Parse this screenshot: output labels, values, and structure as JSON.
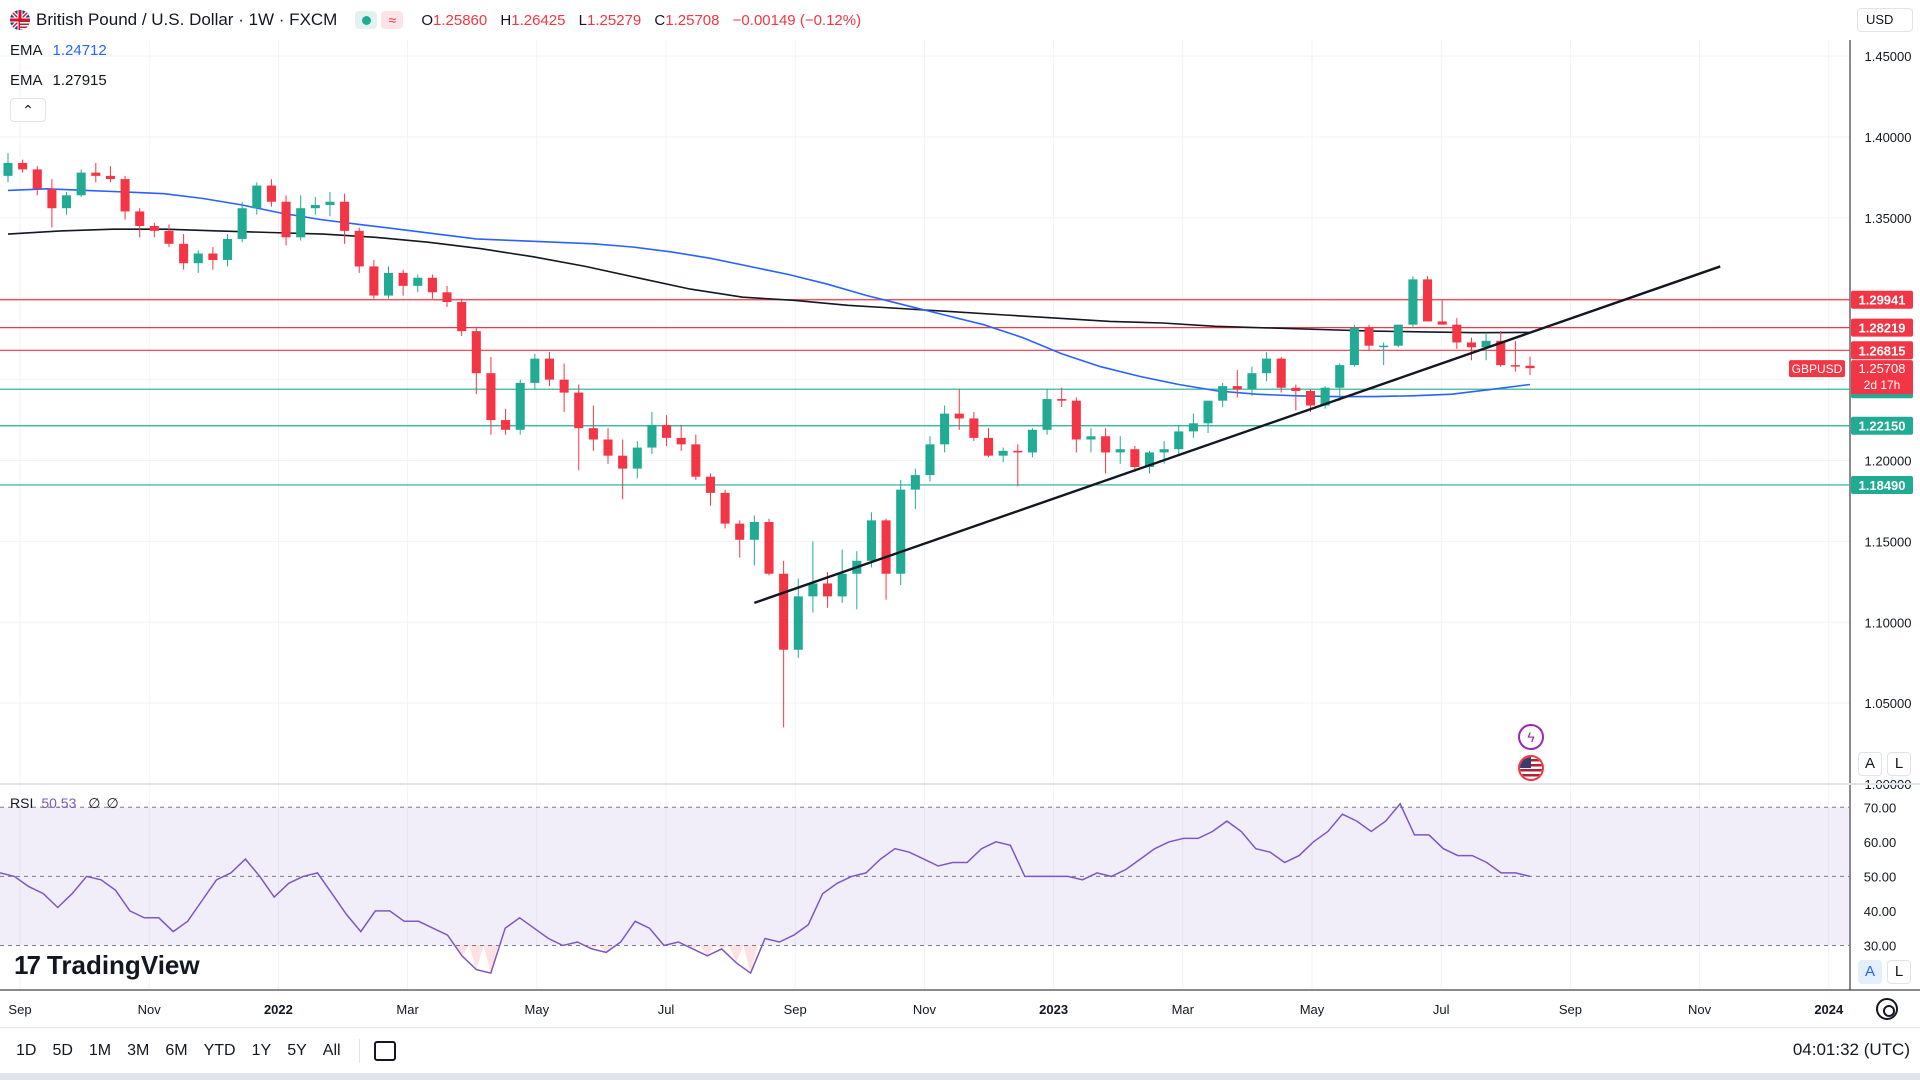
{
  "header": {
    "title": "British Pound / U.S. Dollar · 1W · FXCM",
    "ohlc": [
      {
        "k": "O",
        "v": "1.25860"
      },
      {
        "k": "H",
        "v": "1.26425"
      },
      {
        "k": "L",
        "v": "1.25279"
      },
      {
        "k": "C",
        "v": "1.25708"
      }
    ],
    "change": "−0.00149 (−0.12%)"
  },
  "emas": [
    {
      "label": "EMA",
      "value": "1.24712",
      "color": "#2962ff"
    },
    {
      "label": "EMA",
      "value": "1.27915",
      "color": "#131722"
    }
  ],
  "currency": "USD",
  "symbol_tag": "GBPUSD",
  "countdown": "2d 17h",
  "rsi": {
    "label": "RSI",
    "value": "50.53",
    "extra1": "∅",
    "extra2": "∅"
  },
  "brand": "TradingView",
  "scale_buttons": {
    "auto": "A",
    "log": "L"
  },
  "periods": [
    "1D",
    "5D",
    "1M",
    "3M",
    "6M",
    "YTD",
    "1Y",
    "5Y",
    "All"
  ],
  "clock": "04:01:32 (UTC)",
  "colors": {
    "up": "#22ab94",
    "down": "#f23645",
    "ema_fast": "#2962ff",
    "ema_slow": "#131722",
    "rsi": "#7e57c2"
  },
  "icons": [
    "gbp-usd-flag-icon",
    "calendar-icon",
    "gear-icon",
    "lightning-icon",
    "us-flag-icon"
  ],
  "chart_data": {
    "type": "candlestick",
    "y_range": [
      1.0,
      1.46
    ],
    "y_ticks": [
      "1.45000",
      "1.40000",
      "1.35000",
      "1.30000",
      "1.25000",
      "1.20000",
      "1.15000",
      "1.10000",
      "1.05000",
      "1.00000"
    ],
    "x_labels": [
      "Sep",
      "Nov",
      "2022",
      "Mar",
      "May",
      "Jul",
      "Sep",
      "Nov",
      "2023",
      "Mar",
      "May",
      "Jul",
      "Sep",
      "Nov",
      "2024"
    ],
    "ohlc": [
      [
        1.376,
        1.39,
        1.372,
        1.384
      ],
      [
        1.384,
        1.386,
        1.378,
        1.38
      ],
      [
        1.38,
        1.382,
        1.364,
        1.368
      ],
      [
        1.368,
        1.374,
        1.344,
        1.356
      ],
      [
        1.356,
        1.366,
        1.352,
        1.364
      ],
      [
        1.364,
        1.38,
        1.363,
        1.378
      ],
      [
        1.378,
        1.384,
        1.372,
        1.376
      ],
      [
        1.376,
        1.382,
        1.372,
        1.374
      ],
      [
        1.374,
        1.376,
        1.349,
        1.354
      ],
      [
        1.354,
        1.356,
        1.338,
        1.345
      ],
      [
        1.345,
        1.347,
        1.338,
        1.342
      ],
      [
        1.342,
        1.346,
        1.332,
        1.334
      ],
      [
        1.334,
        1.34,
        1.318,
        1.322
      ],
      [
        1.322,
        1.33,
        1.316,
        1.328
      ],
      [
        1.328,
        1.332,
        1.318,
        1.324
      ],
      [
        1.324,
        1.34,
        1.32,
        1.337
      ],
      [
        1.337,
        1.36,
        1.335,
        1.356
      ],
      [
        1.356,
        1.372,
        1.352,
        1.37
      ],
      [
        1.37,
        1.374,
        1.357,
        1.36
      ],
      [
        1.36,
        1.364,
        1.333,
        1.338
      ],
      [
        1.338,
        1.364,
        1.336,
        1.356
      ],
      [
        1.356,
        1.363,
        1.352,
        1.358
      ],
      [
        1.358,
        1.366,
        1.351,
        1.36
      ],
      [
        1.36,
        1.365,
        1.334,
        1.342
      ],
      [
        1.342,
        1.344,
        1.316,
        1.32
      ],
      [
        1.32,
        1.324,
        1.3,
        1.302
      ],
      [
        1.302,
        1.32,
        1.3,
        1.316
      ],
      [
        1.316,
        1.318,
        1.302,
        1.308
      ],
      [
        1.308,
        1.315,
        1.304,
        1.313
      ],
      [
        1.313,
        1.315,
        1.3,
        1.304
      ],
      [
        1.304,
        1.308,
        1.295,
        1.298
      ],
      [
        1.298,
        1.3,
        1.277,
        1.28
      ],
      [
        1.28,
        1.282,
        1.241,
        1.254
      ],
      [
        1.254,
        1.264,
        1.216,
        1.225
      ],
      [
        1.225,
        1.232,
        1.216,
        1.219
      ],
      [
        1.219,
        1.25,
        1.216,
        1.248
      ],
      [
        1.248,
        1.266,
        1.244,
        1.263
      ],
      [
        1.263,
        1.267,
        1.246,
        1.25
      ],
      [
        1.25,
        1.26,
        1.23,
        1.242
      ],
      [
        1.242,
        1.247,
        1.194,
        1.22
      ],
      [
        1.22,
        1.234,
        1.206,
        1.213
      ],
      [
        1.213,
        1.22,
        1.198,
        1.203
      ],
      [
        1.203,
        1.213,
        1.176,
        1.195
      ],
      [
        1.195,
        1.212,
        1.189,
        1.208
      ],
      [
        1.208,
        1.23,
        1.204,
        1.222
      ],
      [
        1.222,
        1.228,
        1.209,
        1.214
      ],
      [
        1.214,
        1.222,
        1.206,
        1.21
      ],
      [
        1.21,
        1.216,
        1.188,
        1.19
      ],
      [
        1.19,
        1.192,
        1.172,
        1.18
      ],
      [
        1.18,
        1.182,
        1.158,
        1.161
      ],
      [
        1.161,
        1.163,
        1.14,
        1.151
      ],
      [
        1.151,
        1.166,
        1.135,
        1.162
      ],
      [
        1.162,
        1.164,
        1.129,
        1.13
      ],
      [
        1.13,
        1.138,
        1.035,
        1.083
      ],
      [
        1.083,
        1.127,
        1.078,
        1.116
      ],
      [
        1.116,
        1.15,
        1.106,
        1.124
      ],
      [
        1.124,
        1.131,
        1.109,
        1.116
      ],
      [
        1.116,
        1.145,
        1.112,
        1.13
      ],
      [
        1.13,
        1.144,
        1.108,
        1.138
      ],
      [
        1.138,
        1.168,
        1.134,
        1.163
      ],
      [
        1.163,
        1.164,
        1.114,
        1.13
      ],
      [
        1.13,
        1.188,
        1.123,
        1.182
      ],
      [
        1.182,
        1.195,
        1.17,
        1.191
      ],
      [
        1.191,
        1.215,
        1.187,
        1.21
      ],
      [
        1.21,
        1.234,
        1.205,
        1.229
      ],
      [
        1.229,
        1.244,
        1.219,
        1.226
      ],
      [
        1.226,
        1.23,
        1.212,
        1.214
      ],
      [
        1.214,
        1.22,
        1.202,
        1.203
      ],
      [
        1.203,
        1.208,
        1.199,
        1.206
      ],
      [
        1.206,
        1.21,
        1.184,
        1.205
      ],
      [
        1.205,
        1.22,
        1.202,
        1.219
      ],
      [
        1.219,
        1.244,
        1.216,
        1.238
      ],
      [
        1.238,
        1.245,
        1.233,
        1.237
      ],
      [
        1.237,
        1.239,
        1.205,
        1.213
      ],
      [
        1.213,
        1.22,
        1.205,
        1.215
      ],
      [
        1.215,
        1.22,
        1.192,
        1.205
      ],
      [
        1.205,
        1.215,
        1.198,
        1.207
      ],
      [
        1.207,
        1.209,
        1.193,
        1.196
      ],
      [
        1.196,
        1.206,
        1.192,
        1.205
      ],
      [
        1.205,
        1.212,
        1.198,
        1.207
      ],
      [
        1.207,
        1.222,
        1.203,
        1.218
      ],
      [
        1.218,
        1.229,
        1.214,
        1.223
      ],
      [
        1.223,
        1.236,
        1.217,
        1.237
      ],
      [
        1.237,
        1.248,
        1.233,
        1.246
      ],
      [
        1.246,
        1.256,
        1.239,
        1.244
      ],
      [
        1.244,
        1.258,
        1.24,
        1.254
      ],
      [
        1.254,
        1.267,
        1.249,
        1.263
      ],
      [
        1.263,
        1.264,
        1.242,
        1.245
      ],
      [
        1.245,
        1.247,
        1.231,
        1.243
      ],
      [
        1.243,
        1.244,
        1.23,
        1.234
      ],
      [
        1.234,
        1.246,
        1.232,
        1.245
      ],
      [
        1.245,
        1.26,
        1.237,
        1.259
      ],
      [
        1.259,
        1.284,
        1.258,
        1.282
      ],
      [
        1.282,
        1.284,
        1.268,
        1.271
      ],
      [
        1.271,
        1.273,
        1.259,
        1.271
      ],
      [
        1.271,
        1.284,
        1.27,
        1.284
      ],
      [
        1.284,
        1.314,
        1.282,
        1.312
      ],
      [
        1.312,
        1.314,
        1.286,
        1.286
      ],
      [
        1.286,
        1.299,
        1.284,
        1.284
      ],
      [
        1.284,
        1.288,
        1.269,
        1.273
      ],
      [
        1.273,
        1.276,
        1.262,
        1.27
      ],
      [
        1.27,
        1.279,
        1.262,
        1.274
      ],
      [
        1.274,
        1.28,
        1.258,
        1.259
      ],
      [
        1.259,
        1.274,
        1.255,
        1.2586
      ],
      [
        1.2586,
        1.2642,
        1.2528,
        1.2571
      ]
    ],
    "ema_fast": [
      1.367,
      1.368,
      1.367,
      1.366,
      1.365,
      1.362,
      1.358,
      1.353,
      1.349,
      1.346,
      1.343,
      1.34,
      1.337,
      1.336,
      1.335,
      1.334,
      1.332,
      1.329,
      1.325,
      1.32,
      1.315,
      1.309,
      1.302,
      1.296,
      1.29,
      1.284,
      1.276,
      1.266,
      1.258,
      1.252,
      1.247,
      1.243,
      1.241,
      1.24,
      1.2395,
      1.2395,
      1.24,
      1.241,
      1.244,
      1.247
    ],
    "ema_slow": [
      1.34,
      1.342,
      1.343,
      1.343,
      1.342,
      1.341,
      1.34,
      1.338,
      1.335,
      1.331,
      1.326,
      1.32,
      1.313,
      1.306,
      1.301,
      1.299,
      1.296,
      1.294,
      1.292,
      1.29,
      1.288,
      1.286,
      1.285,
      1.283,
      1.282,
      1.281,
      1.28,
      1.2795,
      1.279,
      1.2792
    ],
    "levels": [
      {
        "label": "1.29941",
        "value": 1.29941,
        "color": "#f23645"
      },
      {
        "label": "1.28219",
        "value": 1.28219,
        "color": "#f23645"
      },
      {
        "label": "1.26815",
        "value": 1.26815,
        "color": "#f23645"
      },
      {
        "label": "1.24410",
        "value": 1.2441,
        "color": "#22ab94"
      },
      {
        "label": "1.22150",
        "value": 1.2215,
        "color": "#22ab94"
      },
      {
        "label": "1.18490",
        "value": 1.1849,
        "color": "#22ab94"
      }
    ],
    "trendline": {
      "from": [
        51,
        1.112
      ],
      "to": [
        117,
        1.32
      ]
    },
    "rsi_range": [
      20,
      75
    ],
    "rsi_ticks": [
      "70.00",
      "60.00",
      "50.00",
      "40.00",
      "30.00"
    ],
    "rsi_values": [
      51,
      50,
      47,
      45,
      41,
      45,
      50,
      49,
      46,
      40,
      38,
      38,
      34,
      37,
      43,
      49,
      51,
      55,
      50,
      44,
      48,
      50,
      51,
      45,
      39,
      34,
      40,
      40,
      37,
      37,
      35,
      33,
      27,
      23,
      22,
      35,
      38,
      35,
      32,
      30,
      31,
      29,
      28,
      31,
      37,
      35,
      30,
      31,
      29,
      27,
      29,
      25,
      22,
      32,
      31,
      33,
      36,
      45,
      48,
      50,
      51,
      55,
      58,
      57,
      55,
      53,
      54,
      54,
      58,
      60,
      59,
      50,
      50,
      50,
      50,
      49,
      51,
      50,
      52,
      55,
      58,
      60,
      61,
      61,
      63,
      66,
      63,
      58,
      57,
      54,
      56,
      60,
      63,
      68,
      66,
      63,
      66,
      71,
      62,
      62,
      58,
      56,
      56,
      54,
      51,
      51,
      50
    ]
  }
}
